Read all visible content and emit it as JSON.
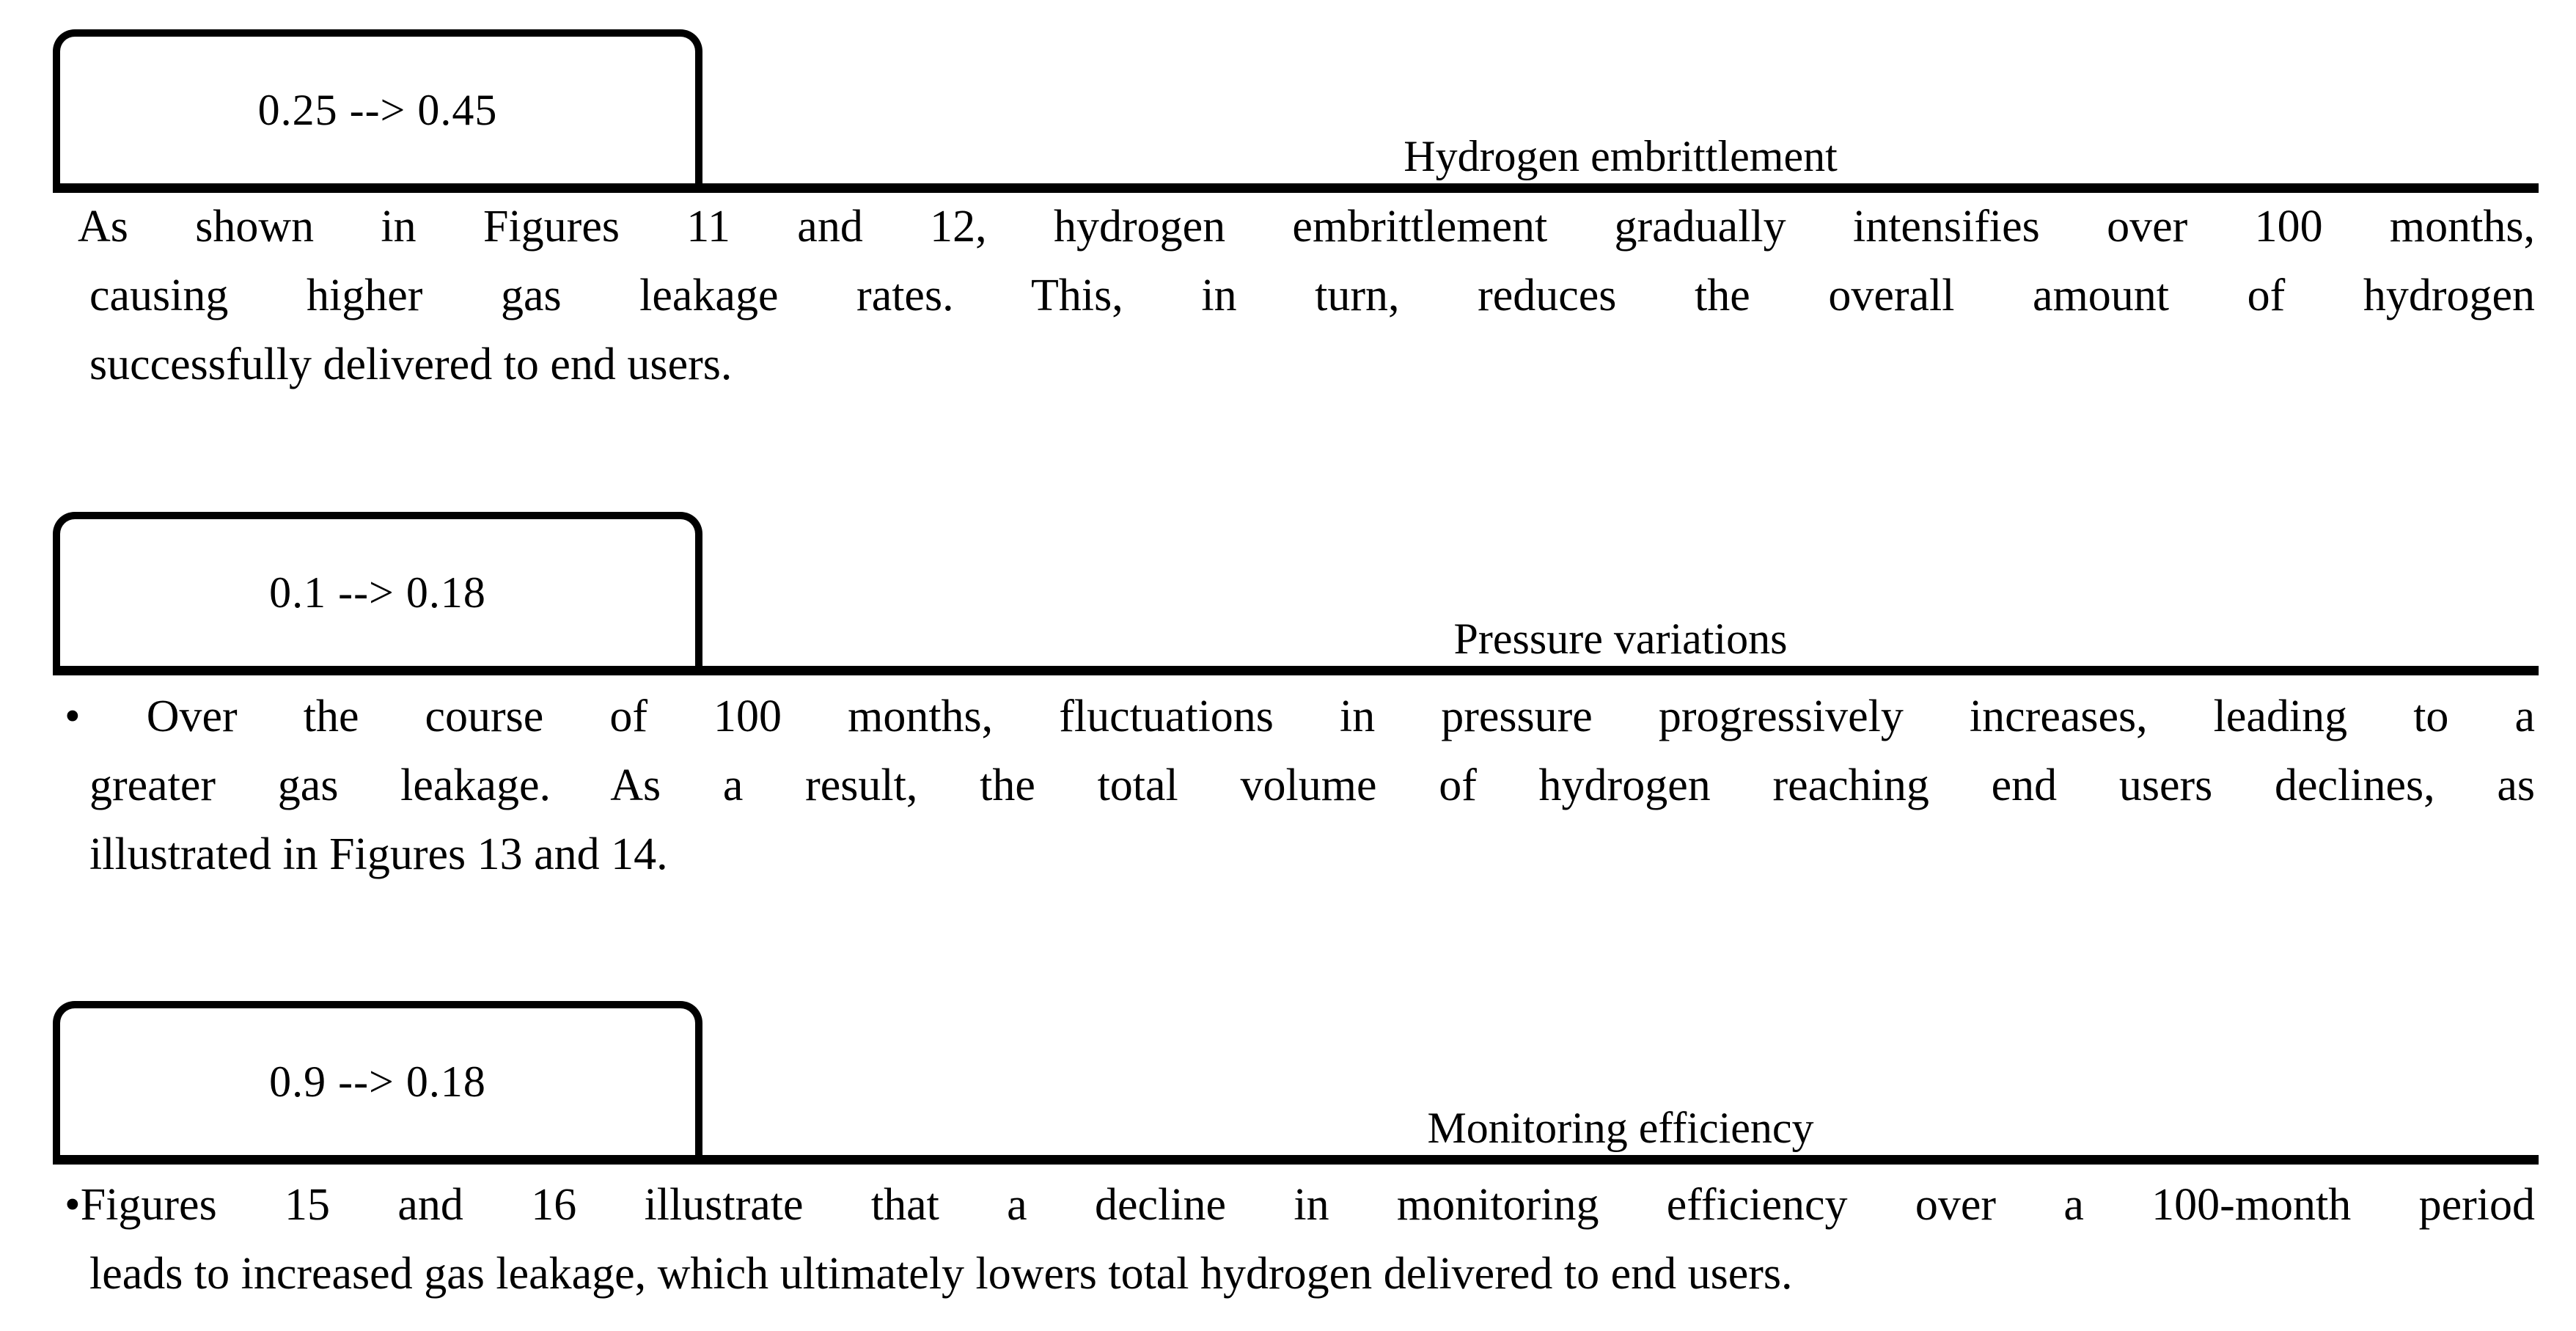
{
  "page": {
    "background_color": "#ffffff",
    "ink_color": "#000000"
  },
  "sections": [
    {
      "id": "hydrogen-embrittlement",
      "box_value": "0.25 --> 0.45",
      "title": "Hydrogen embrittlement",
      "paragraph_lines": [
        "As shown in Figures 11 and 12, hydrogen embrittlement gradually intensifies over 100 months,",
        "causing higher gas leakage rates. This, in turn, reduces the overall amount of hydrogen",
        "successfully delivered to end users."
      ]
    },
    {
      "id": "pressure-variations",
      "box_value": "0.1 --> 0.18",
      "title": "Pressure variations",
      "paragraph_lines": [
        "• Over the course of 100 months, fluctuations in pressure progressively increases, leading to a",
        "greater gas leakage. As a result, the total volume of hydrogen reaching end users declines, as",
        "illustrated in Figures 13 and 14."
      ]
    },
    {
      "id": "monitoring-efficiency",
      "box_value": "0.9 --> 0.18",
      "title": "Monitoring efficiency",
      "paragraph_lines": [
        "•Figures 15 and 16 illustrate that a decline in monitoring efficiency over a 100-month period",
        "leads to increased gas leakage, which ultimately lowers total hydrogen delivered to end users."
      ]
    }
  ]
}
